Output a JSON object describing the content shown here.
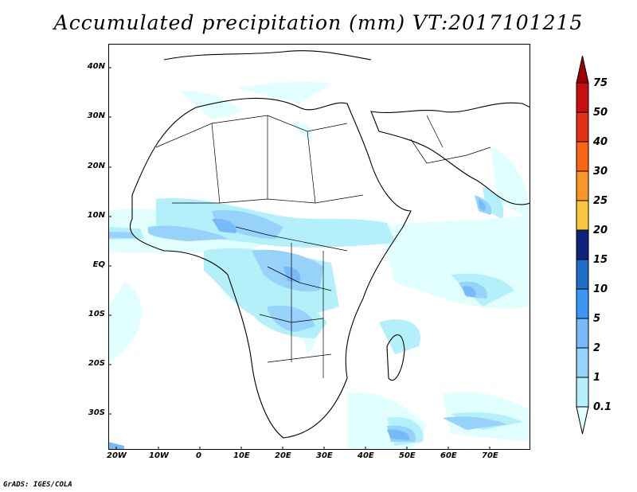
{
  "title": "Accumulated precipitation (mm) VT:2017101215",
  "footer": "GrADS: IGES/COLA",
  "axes": {
    "x_ticks": [
      "20W",
      "10W",
      "0",
      "10E",
      "20E",
      "30E",
      "40E",
      "50E",
      "60E",
      "70E"
    ],
    "y_ticks": [
      "40N",
      "30N",
      "20N",
      "10N",
      "EQ",
      "10S",
      "20S",
      "30S"
    ]
  },
  "colorbar": {
    "levels": [
      "0.1",
      "1",
      "2",
      "5",
      "10",
      "15",
      "20",
      "25",
      "30",
      "40",
      "50",
      "75"
    ],
    "colors": [
      "#e1ffff",
      "#b4f0fa",
      "#96d2fa",
      "#78b9fa",
      "#3c96f5",
      "#1e6ec8",
      "#0f237d",
      "#fac83c",
      "#fa9628",
      "#fa6414",
      "#e13214",
      "#c80f0f",
      "#a00000"
    ]
  }
}
